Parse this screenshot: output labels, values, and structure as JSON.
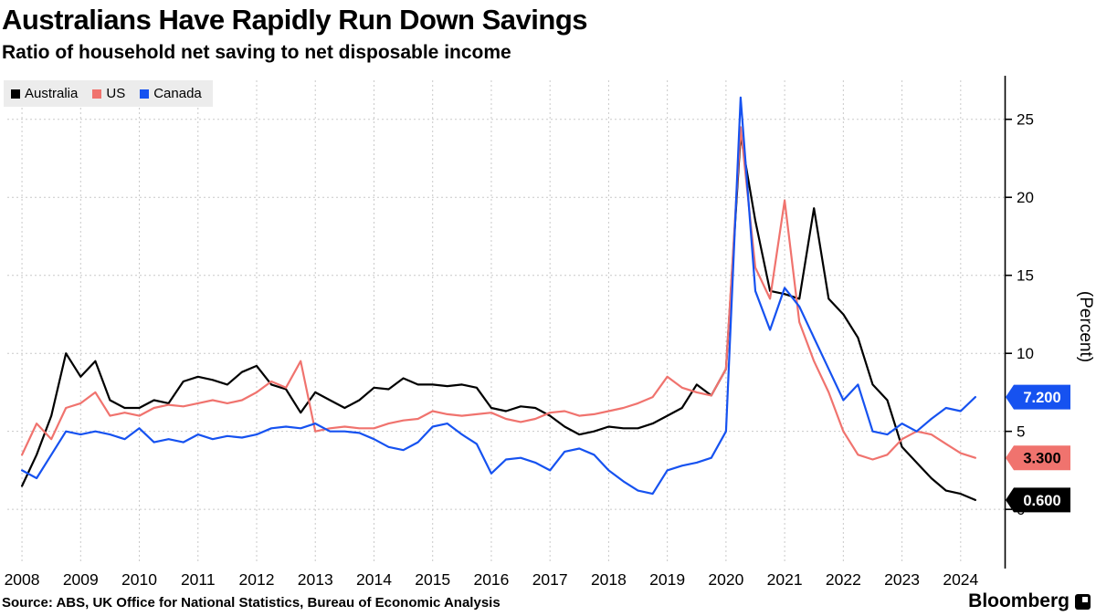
{
  "title": "Australians Have Rapidly Run Down Savings",
  "subtitle": "Ratio of household net saving to net disposable income",
  "source": "Source: ABS, UK Office for National Statistics, Bureau of Economic Analysis",
  "brand": "Bloomberg",
  "legend": [
    {
      "label": "Australia",
      "color": "#000000"
    },
    {
      "label": "US",
      "color": "#f0736e"
    },
    {
      "label": "Canada",
      "color": "#1652f0"
    }
  ],
  "axis": {
    "y_unit": "(Percent)",
    "y_ticks": [
      0,
      5,
      10,
      15,
      20,
      25
    ],
    "x_ticks": [
      2008,
      2009,
      2010,
      2011,
      2012,
      2013,
      2014,
      2015,
      2016,
      2017,
      2018,
      2019,
      2020,
      2021,
      2022,
      2023,
      2024
    ]
  },
  "end_labels": [
    {
      "series": "Canada",
      "text": "7.200",
      "value": 7.2,
      "bg": "#1652f0",
      "fg": "#ffffff"
    },
    {
      "series": "US",
      "text": "3.300",
      "value": 3.3,
      "bg": "#f0736e",
      "fg": "#000000"
    },
    {
      "series": "Australia",
      "text": "0.600",
      "value": 0.6,
      "bg": "#000000",
      "fg": "#ffffff"
    }
  ],
  "chart_data": {
    "type": "line",
    "x_start": 2008.0,
    "x_step": 0.25,
    "xlim": [
      2007.75,
      2024.75
    ],
    "ylim": [
      -3.5,
      27.5
    ],
    "grid": true,
    "legend_position": "top-left",
    "xlabel": "",
    "ylabel": "(Percent)",
    "series": [
      {
        "name": "Australia",
        "color": "#000000",
        "values": [
          1.5,
          3.5,
          6,
          10,
          8.5,
          9.5,
          7,
          6.5,
          6.5,
          7,
          6.8,
          8.2,
          8.5,
          8.3,
          8,
          8.8,
          9.2,
          8,
          7.7,
          6.2,
          7.5,
          7,
          6.5,
          7,
          7.8,
          7.7,
          8.4,
          8,
          8,
          7.9,
          8,
          7.8,
          6.5,
          6.3,
          6.6,
          6.5,
          6,
          5.3,
          4.8,
          5,
          5.3,
          5.2,
          5.2,
          5.5,
          6,
          6.5,
          8,
          7.3,
          9,
          24,
          18.5,
          14,
          13.8,
          13.5,
          19.3,
          13.5,
          12.5,
          11,
          8,
          7,
          4,
          3,
          2,
          1.2,
          1,
          0.6
        ]
      },
      {
        "name": "US",
        "color": "#f0736e",
        "values": [
          3.5,
          5.5,
          4.5,
          6.5,
          6.8,
          7.5,
          6,
          6.2,
          6,
          6.5,
          6.7,
          6.6,
          6.8,
          7,
          6.8,
          7,
          7.5,
          8.2,
          7.8,
          9.5,
          5,
          5.2,
          5.3,
          5.2,
          5.2,
          5.5,
          5.7,
          5.8,
          6.3,
          6.1,
          6,
          6.1,
          6.2,
          5.8,
          5.6,
          5.8,
          6.2,
          6.3,
          6,
          6.1,
          6.3,
          6.5,
          6.8,
          7.2,
          8.5,
          7.8,
          7.5,
          7.3,
          9,
          24.5,
          15.5,
          13.5,
          19.8,
          12,
          9.5,
          7.5,
          5,
          3.5,
          3.2,
          3.5,
          4.5,
          5,
          4.8,
          4.2,
          3.6,
          3.3
        ]
      },
      {
        "name": "Canada",
        "color": "#1652f0",
        "values": [
          2.5,
          2,
          3.5,
          5,
          4.8,
          5,
          4.8,
          4.5,
          5.2,
          4.3,
          4.5,
          4.3,
          4.8,
          4.5,
          4.7,
          4.6,
          4.8,
          5.2,
          5.3,
          5.2,
          5.5,
          5,
          5,
          4.9,
          4.5,
          4,
          3.8,
          4.3,
          5.3,
          5.5,
          4.8,
          4.2,
          2.3,
          3.2,
          3.3,
          3,
          2.5,
          3.7,
          3.9,
          3.5,
          2.5,
          1.8,
          1.2,
          1,
          2.5,
          2.8,
          3,
          3.3,
          5,
          26.4,
          14,
          11.5,
          14.2,
          13,
          11,
          9,
          7,
          8,
          5,
          4.8,
          5.5,
          5,
          5.8,
          6.5,
          6.3,
          7.2
        ]
      }
    ]
  }
}
